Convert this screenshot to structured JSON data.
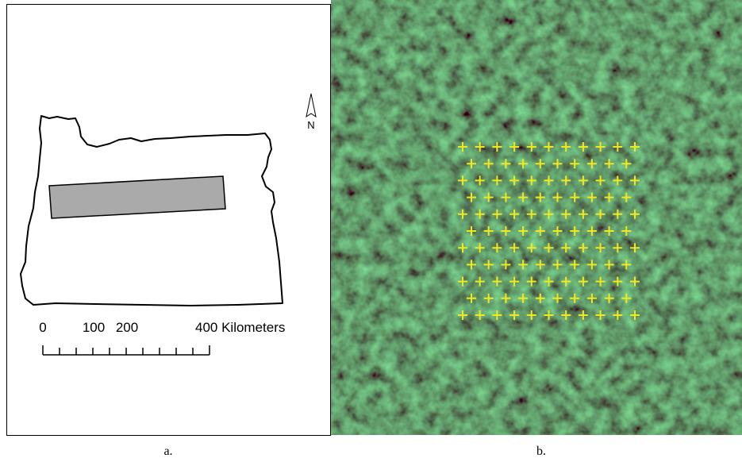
{
  "panel_a": {
    "north": "N",
    "scale_labels": [
      "0",
      "100",
      "200",
      "400 Kilometers"
    ],
    "caption": "a."
  },
  "panel_b": {
    "caption": "b."
  }
}
